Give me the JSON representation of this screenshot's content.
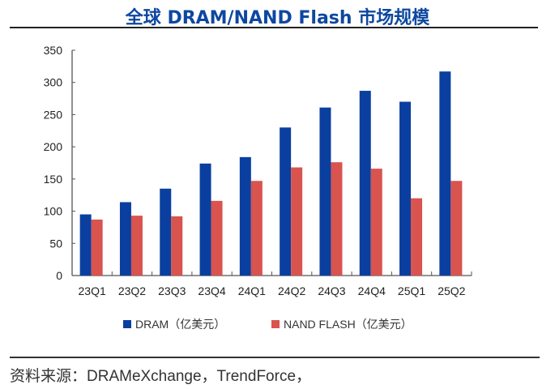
{
  "header": {
    "title": "全球 DRAM/NAND Flash 市场规模"
  },
  "footer": {
    "source": "资料来源：DRAMeXchange，TrendForce，"
  },
  "colors": {
    "dram": "#0a3fa0",
    "nand": "#d9534f",
    "title": "#0d47a1"
  },
  "chart_data": {
    "type": "bar",
    "title": "全球 DRAM/NAND Flash 市场规模",
    "xlabel": "",
    "ylabel": "",
    "categories": [
      "23Q1",
      "23Q2",
      "23Q3",
      "23Q4",
      "24Q1",
      "24Q2",
      "24Q3",
      "24Q4",
      "25Q1",
      "25Q2"
    ],
    "series": [
      {
        "name": "DRAM（亿美元）",
        "values": [
          95,
          114,
          135,
          174,
          184,
          230,
          261,
          287,
          270,
          317
        ]
      },
      {
        "name": "NAND FLASH（亿美元）",
        "values": [
          87,
          93,
          92,
          116,
          147,
          168,
          176,
          166,
          120,
          147
        ]
      }
    ],
    "ylim": [
      0,
      350
    ],
    "yticks": [
      0,
      50,
      100,
      150,
      200,
      250,
      300,
      350
    ],
    "grid": false,
    "legend_position": "bottom"
  }
}
